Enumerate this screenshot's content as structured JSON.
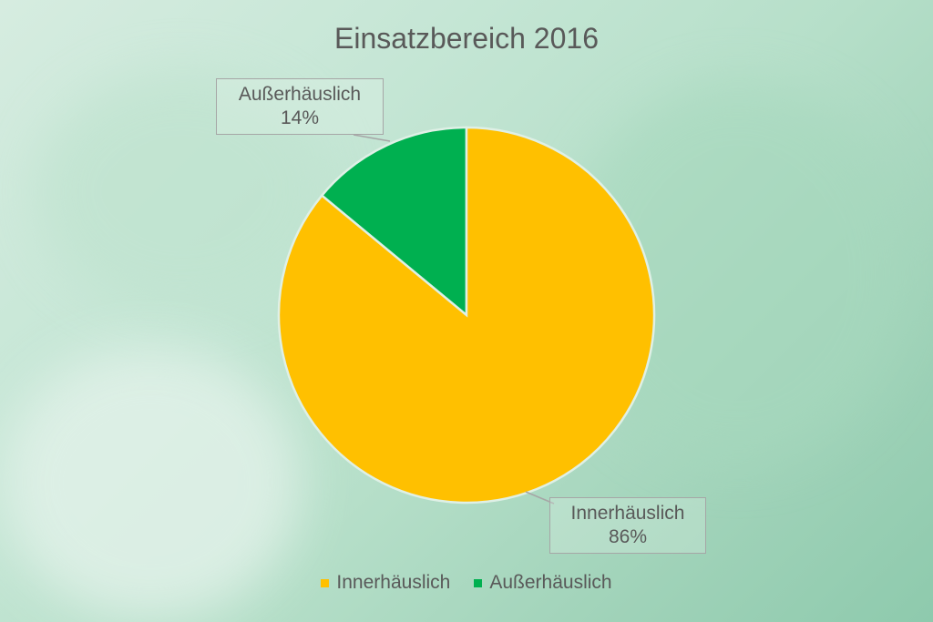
{
  "chart_data": {
    "type": "pie",
    "title": "Einsatzbereich 2016",
    "categories": [
      "Innerhäuslich",
      "Außerhäuslich"
    ],
    "values": [
      86,
      14
    ],
    "value_labels": [
      "86%",
      "14%"
    ],
    "colors": [
      "#FFC000",
      "#00B050"
    ],
    "legend_position": "bottom"
  }
}
